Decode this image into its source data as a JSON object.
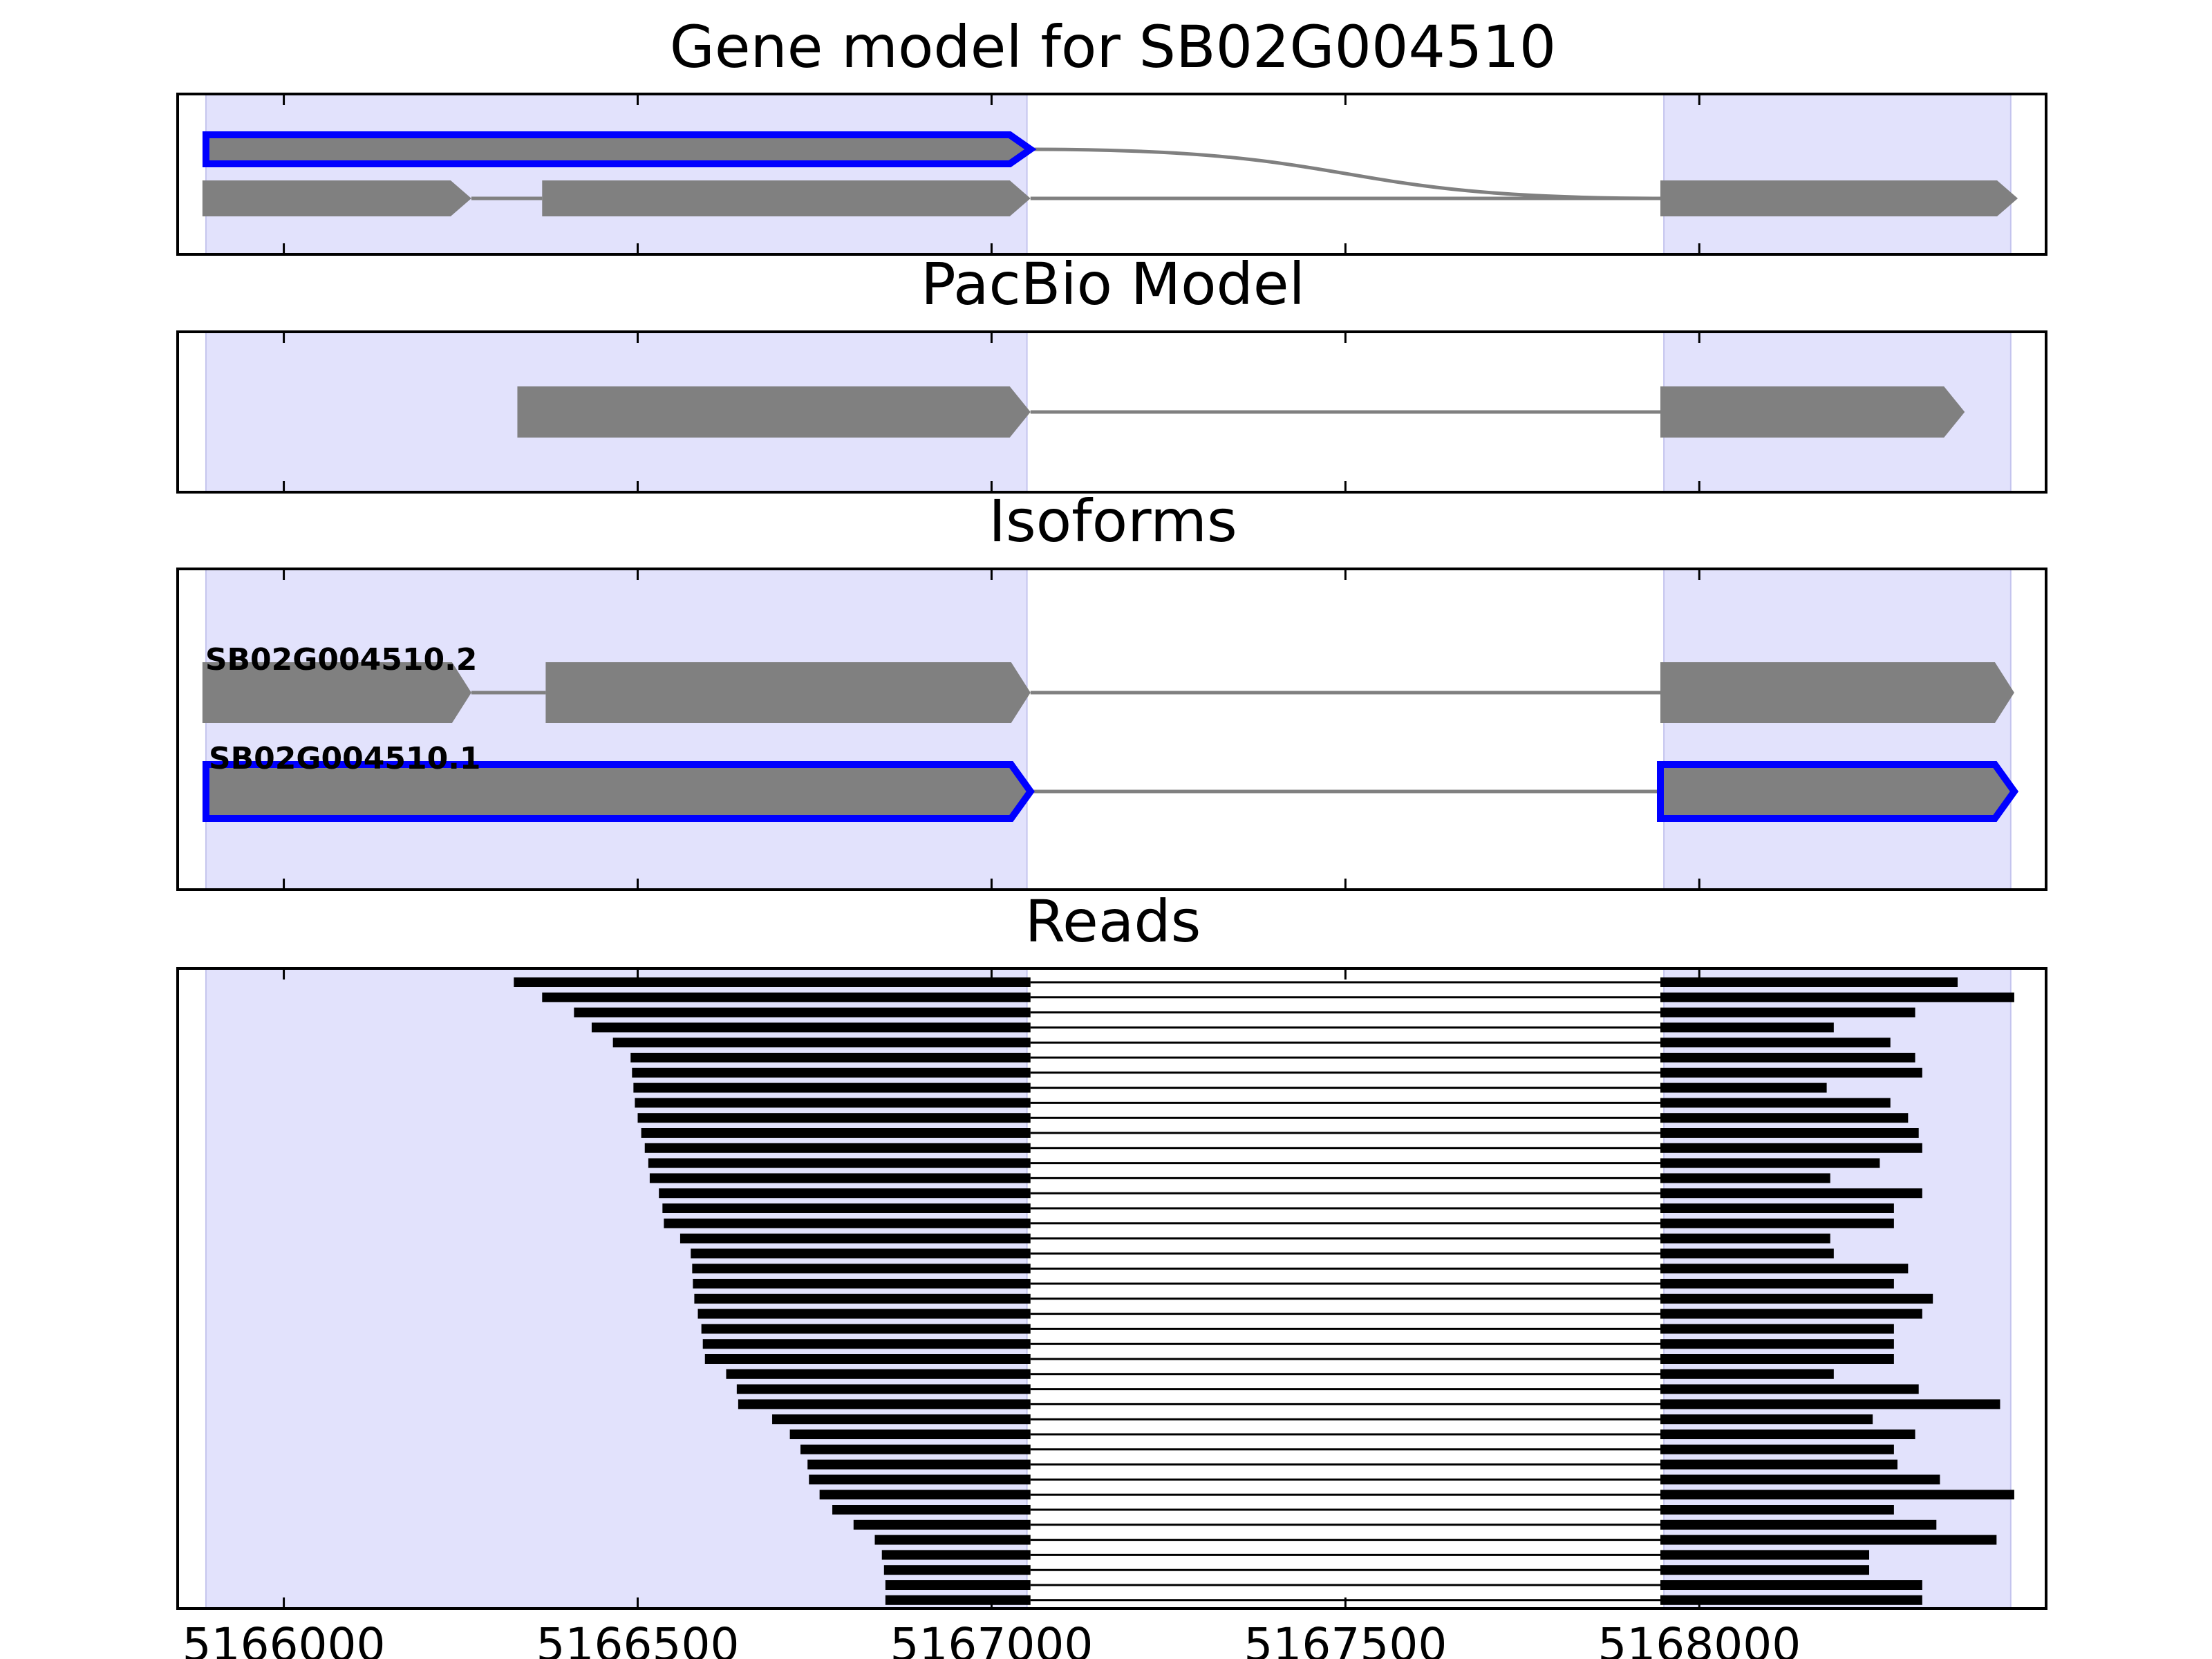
{
  "figure": {
    "panels": [
      {
        "id": "gene",
        "title": "Gene model for SB02G004510"
      },
      {
        "id": "pacbio",
        "title": "PacBio Model"
      },
      {
        "id": "isoforms",
        "title": "Isoforms"
      },
      {
        "id": "reads",
        "title": "Reads"
      }
    ]
  },
  "colors": {
    "exon_fill": "#808080",
    "intron_line": "#808080",
    "highlight_outline": "#0000ff",
    "shade_region": "#e2e2fc",
    "read_color": "#000000",
    "frame": "#000000"
  },
  "chart_data": {
    "type": "gene-model-track",
    "xlim": [
      5165850,
      5168490
    ],
    "x_ticks": [
      5166000,
      5166500,
      5167000,
      5167500,
      5168000
    ],
    "x_tick_labels": [
      "5166000",
      "5166500",
      "5167000",
      "5167500",
      "5168000"
    ],
    "shaded_regions": [
      [
        5165890,
        5167050
      ],
      [
        5167950,
        5168440
      ]
    ],
    "gene_model": {
      "title": "Gene model for SB02G004510",
      "highlighted_transcript": {
        "exons": [
          [
            5165890,
            5167055
          ]
        ],
        "intron_to": 5167950
      },
      "transcript": {
        "exons": [
          [
            5165885,
            5166265
          ],
          [
            5166365,
            5167055
          ],
          [
            5167945,
            5168450
          ]
        ]
      }
    },
    "pacbio_model": {
      "title": "PacBio Model",
      "exons": [
        [
          5166330,
          5167055
        ],
        [
          5167945,
          5168375
        ]
      ]
    },
    "isoforms": {
      "title": "Isoforms",
      "items": [
        {
          "name": "SB02G004510.2",
          "highlighted": false,
          "exons": [
            [
              5165885,
              5166265
            ],
            [
              5166370,
              5167055
            ],
            [
              5167945,
              5168445
            ]
          ]
        },
        {
          "name": "SB02G004510.1",
          "highlighted": true,
          "exons": [
            [
              5165890,
              5167055
            ],
            [
              5167945,
              5168445
            ]
          ]
        }
      ]
    },
    "reads": {
      "title": "Reads",
      "exon1_end": 5167055,
      "exon2_start": 5167945,
      "starts": [
        5166325,
        5166365,
        5166410,
        5166435,
        5166465,
        5166490,
        5166492,
        5166494,
        5166496,
        5166500,
        5166505,
        5166510,
        5166515,
        5166517,
        5166530,
        5166535,
        5166537,
        5166560,
        5166575,
        5166577,
        5166578,
        5166580,
        5166585,
        5166590,
        5166592,
        5166595,
        5166625,
        5166640,
        5166642,
        5166690,
        5166715,
        5166730,
        5166740,
        5166742,
        5166757,
        5166775,
        5166805,
        5166835,
        5166845,
        5166848,
        5166850,
        5166850
      ],
      "ends": [
        5168365,
        5168445,
        5168305,
        5168190,
        5168270,
        5168305,
        5168315,
        5168180,
        5168270,
        5168295,
        5168310,
        5168315,
        5168255,
        5168185,
        5168315,
        5168275,
        5168275,
        5168185,
        5168190,
        5168295,
        5168275,
        5168330,
        5168315,
        5168275,
        5168275,
        5168275,
        5168190,
        5168310,
        5168425,
        5168245,
        5168305,
        5168275,
        5168280,
        5168340,
        5168445,
        5168275,
        5168335,
        5168420,
        5168240,
        5168240,
        5168315,
        5168315
      ]
    }
  }
}
